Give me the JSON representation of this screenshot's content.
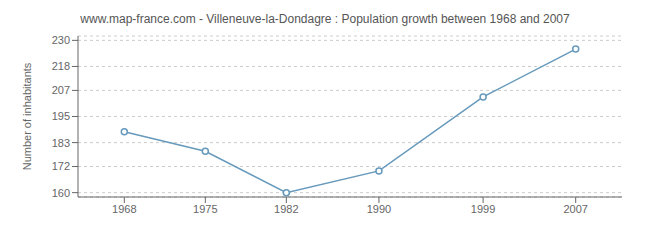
{
  "chart_data": {
    "type": "line",
    "title": "www.map-france.com - Villeneuve-la-Dondagre : Population growth between 1968 and 2007",
    "ylabel": "Number of inhabitants",
    "x": [
      1968,
      1975,
      1982,
      1990,
      1999,
      2007
    ],
    "values": [
      188,
      179,
      160,
      170,
      204,
      226
    ],
    "xlim": [
      1964,
      2011
    ],
    "ylim": [
      158,
      232
    ],
    "xticks": [
      1968,
      1975,
      1982,
      1990,
      1999,
      2007
    ],
    "yticks": [
      160,
      172,
      183,
      195,
      207,
      218,
      230
    ],
    "color": "#6699bb",
    "marker": "circle",
    "grid": true
  }
}
